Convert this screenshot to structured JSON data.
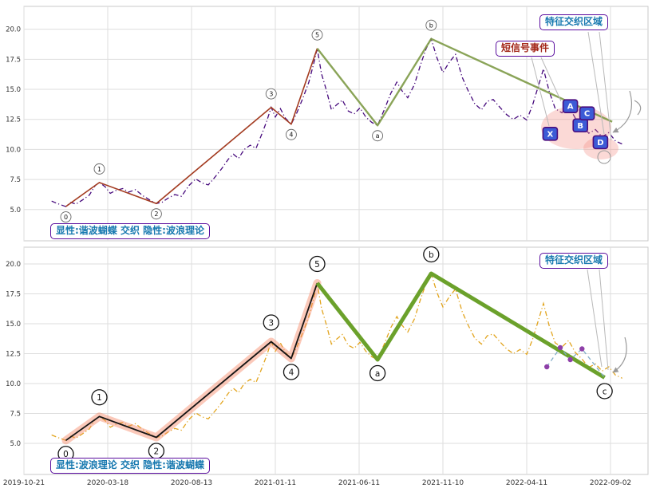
{
  "annotations": {
    "region_top": "特征交织区域",
    "signal": "短信号事件",
    "caption_top": "显性:谐波蝴蝶 交织 隐性:波浪理论",
    "region_bottom": "特征交织区域",
    "caption_bottom": "显性:波浪理论 交织 隐性:谐波蝴蝶"
  },
  "chart_data": {
    "type": "line",
    "title": "",
    "xlabel": "",
    "ylabel": "",
    "grid": true,
    "ylim": [
      2.4,
      21.9
    ],
    "y_ticks": [
      "5.0",
      "7.5",
      "10.0",
      "12.5",
      "15.0",
      "17.5",
      "20.0"
    ],
    "x_tick_labels": [
      "2019-10-21",
      "2020-03-18",
      "2020-08-13",
      "2021-01-11",
      "2021-06-11",
      "2021-11-10",
      "2022-04-11",
      "2022-09-02"
    ],
    "style": {
      "spine": "#c9c9c9",
      "grid": "#dedede",
      "tick": "#333333",
      "wave_text": "#111111"
    },
    "shared_price_points": [
      [
        0.33,
        5.7
      ],
      [
        0.4,
        5.5
      ],
      [
        0.48,
        5.3
      ],
      [
        0.5,
        5.25
      ],
      [
        0.56,
        5.6
      ],
      [
        0.62,
        5.45
      ],
      [
        0.7,
        5.8
      ],
      [
        0.78,
        6.2
      ],
      [
        0.85,
        7.0
      ],
      [
        0.9,
        7.25
      ],
      [
        0.97,
        6.9
      ],
      [
        1.03,
        6.35
      ],
      [
        1.1,
        6.6
      ],
      [
        1.18,
        6.75
      ],
      [
        1.25,
        6.45
      ],
      [
        1.33,
        6.65
      ],
      [
        1.42,
        6.15
      ],
      [
        1.5,
        5.8
      ],
      [
        1.58,
        5.5
      ],
      [
        1.65,
        5.62
      ],
      [
        1.72,
        5.95
      ],
      [
        1.8,
        6.25
      ],
      [
        1.88,
        6.1
      ],
      [
        1.97,
        7.0
      ],
      [
        2.05,
        7.55
      ],
      [
        2.13,
        7.2
      ],
      [
        2.2,
        7.05
      ],
      [
        2.28,
        7.7
      ],
      [
        2.36,
        8.4
      ],
      [
        2.44,
        9.2
      ],
      [
        2.5,
        9.6
      ],
      [
        2.56,
        9.25
      ],
      [
        2.63,
        10.0
      ],
      [
        2.7,
        10.35
      ],
      [
        2.77,
        10.1
      ],
      [
        2.84,
        11.3
      ],
      [
        2.9,
        12.4
      ],
      [
        2.95,
        13.5
      ],
      [
        3.0,
        12.7
      ],
      [
        3.06,
        13.4
      ],
      [
        3.12,
        12.6
      ],
      [
        3.19,
        12.1
      ],
      [
        3.26,
        13.1
      ],
      [
        3.33,
        14.3
      ],
      [
        3.4,
        15.6
      ],
      [
        3.46,
        17.2
      ],
      [
        3.5,
        18.4
      ],
      [
        3.55,
        16.3
      ],
      [
        3.61,
        14.9
      ],
      [
        3.67,
        13.3
      ],
      [
        3.73,
        13.7
      ],
      [
        3.8,
        14.1
      ],
      [
        3.87,
        13.2
      ],
      [
        3.94,
        12.95
      ],
      [
        4.01,
        13.45
      ],
      [
        4.08,
        12.7
      ],
      [
        4.15,
        12.25
      ],
      [
        4.22,
        12.0
      ],
      [
        4.3,
        13.3
      ],
      [
        4.38,
        14.7
      ],
      [
        4.45,
        15.6
      ],
      [
        4.51,
        14.9
      ],
      [
        4.58,
        14.3
      ],
      [
        4.66,
        15.4
      ],
      [
        4.73,
        17.0
      ],
      [
        4.8,
        18.4
      ],
      [
        4.86,
        19.2
      ],
      [
        4.93,
        17.6
      ],
      [
        5.0,
        16.4
      ],
      [
        5.08,
        17.3
      ],
      [
        5.15,
        17.9
      ],
      [
        5.23,
        16.0
      ],
      [
        5.3,
        14.9
      ],
      [
        5.38,
        13.8
      ],
      [
        5.46,
        13.3
      ],
      [
        5.53,
        14.0
      ],
      [
        5.6,
        14.15
      ],
      [
        5.68,
        13.5
      ],
      [
        5.76,
        12.9
      ],
      [
        5.84,
        12.5
      ],
      [
        5.92,
        12.85
      ],
      [
        6.0,
        12.45
      ],
      [
        6.07,
        13.7
      ],
      [
        6.14,
        15.3
      ],
      [
        6.2,
        16.7
      ],
      [
        6.27,
        14.8
      ],
      [
        6.34,
        13.4
      ],
      [
        6.42,
        13.05
      ],
      [
        6.5,
        13.6
      ],
      [
        6.58,
        12.6
      ],
      [
        6.66,
        12.05
      ],
      [
        6.74,
        11.35
      ],
      [
        6.82,
        11.65
      ],
      [
        6.9,
        11.05
      ],
      [
        6.98,
        11.4
      ],
      [
        7.06,
        10.7
      ],
      [
        7.14,
        10.45
      ]
    ],
    "charts": [
      {
        "name": "top-chart-explicit-harmonic-implicit-wave",
        "price_color": "#45087c",
        "price_style": "dashdot",
        "highlight_color": "rgba(243,139,130,0.33)",
        "series": [
          {
            "name": "impulse-wave-0-5",
            "color": "#a33b20",
            "width": 1.6,
            "points": [
              [
                0.5,
                5.25
              ],
              [
                0.9,
                7.25
              ],
              [
                1.58,
                5.5
              ],
              [
                2.95,
                13.5
              ],
              [
                3.19,
                12.1
              ],
              [
                3.5,
                18.4
              ]
            ]
          },
          {
            "name": "corrective-wave-5-a-b",
            "color": "#7d9a46",
            "width": 2.4,
            "opacity": 0.9,
            "points": [
              [
                3.5,
                18.4
              ],
              [
                4.22,
                12.0
              ],
              [
                4.86,
                19.2
              ],
              [
                7.02,
                12.3
              ]
            ]
          }
        ],
        "wave_labels": [
          {
            "text": "0",
            "t": 0.5,
            "v": 5.25,
            "side": "below"
          },
          {
            "text": "1",
            "t": 0.9,
            "v": 7.25,
            "side": "above"
          },
          {
            "text": "2",
            "t": 1.58,
            "v": 5.5,
            "side": "below"
          },
          {
            "text": "3",
            "t": 2.95,
            "v": 13.5,
            "side": "above"
          },
          {
            "text": "4",
            "t": 3.19,
            "v": 12.1,
            "side": "below"
          },
          {
            "text": "5",
            "t": 3.5,
            "v": 18.4,
            "side": "above"
          },
          {
            "text": "a",
            "t": 4.22,
            "v": 12.0,
            "side": "below"
          },
          {
            "text": "b",
            "t": 4.86,
            "v": 19.2,
            "side": "above"
          }
        ],
        "harmonic_boxes": [
          {
            "label": "X",
            "t": 6.28,
            "v": 11.3
          },
          {
            "label": "A",
            "t": 6.52,
            "v": 13.6
          },
          {
            "label": "B",
            "t": 6.64,
            "v": 12.0
          },
          {
            "label": "C",
            "t": 6.72,
            "v": 13.0
          },
          {
            "label": "D",
            "t": 6.88,
            "v": 10.6
          }
        ]
      },
      {
        "name": "bottom-chart-explicit-wave-implicit-harmonic",
        "price_color": "#e2a41d",
        "price_style": "dashdot",
        "series": [
          {
            "name": "impulse-wave-0-5",
            "color": "#141414",
            "width": 1.8,
            "band_color": "rgba(246,136,102,0.45)",
            "band_width": 10,
            "points": [
              [
                0.5,
                5.25
              ],
              [
                0.9,
                7.25
              ],
              [
                1.58,
                5.5
              ],
              [
                2.95,
                13.5
              ],
              [
                3.19,
                12.1
              ],
              [
                3.5,
                18.4
              ]
            ]
          },
          {
            "name": "corrective-wave-5-a-b-c",
            "color": "#6ba12b",
            "width": 5,
            "points": [
              [
                3.5,
                18.4
              ],
              [
                4.22,
                12.0
              ],
              [
                4.86,
                19.2
              ],
              [
                6.93,
                10.5
              ]
            ]
          },
          {
            "name": "hidden-harmonic-xabcd",
            "color": "#82aec8",
            "width": 1.3,
            "dash": "5 4",
            "marker_color": "#8e3fa8",
            "points": [
              [
                6.24,
                11.4
              ],
              [
                6.4,
                13.0
              ],
              [
                6.52,
                12.0
              ],
              [
                6.66,
                12.9
              ],
              [
                6.93,
                10.5
              ]
            ]
          }
        ],
        "wave_labels": [
          {
            "text": "0",
            "t": 0.5,
            "v": 5.25,
            "side": "below"
          },
          {
            "text": "1",
            "t": 0.9,
            "v": 7.25,
            "side": "above"
          },
          {
            "text": "2",
            "t": 1.58,
            "v": 5.5,
            "side": "below"
          },
          {
            "text": "3",
            "t": 2.95,
            "v": 13.5,
            "side": "above"
          },
          {
            "text": "4",
            "t": 3.19,
            "v": 12.1,
            "side": "below"
          },
          {
            "text": "5",
            "t": 3.5,
            "v": 18.4,
            "side": "above"
          },
          {
            "text": "a",
            "t": 4.22,
            "v": 12.0,
            "side": "below"
          },
          {
            "text": "b",
            "t": 4.86,
            "v": 19.2,
            "side": "above"
          },
          {
            "text": "c",
            "t": 6.93,
            "v": 10.5,
            "side": "below"
          }
        ]
      }
    ]
  }
}
